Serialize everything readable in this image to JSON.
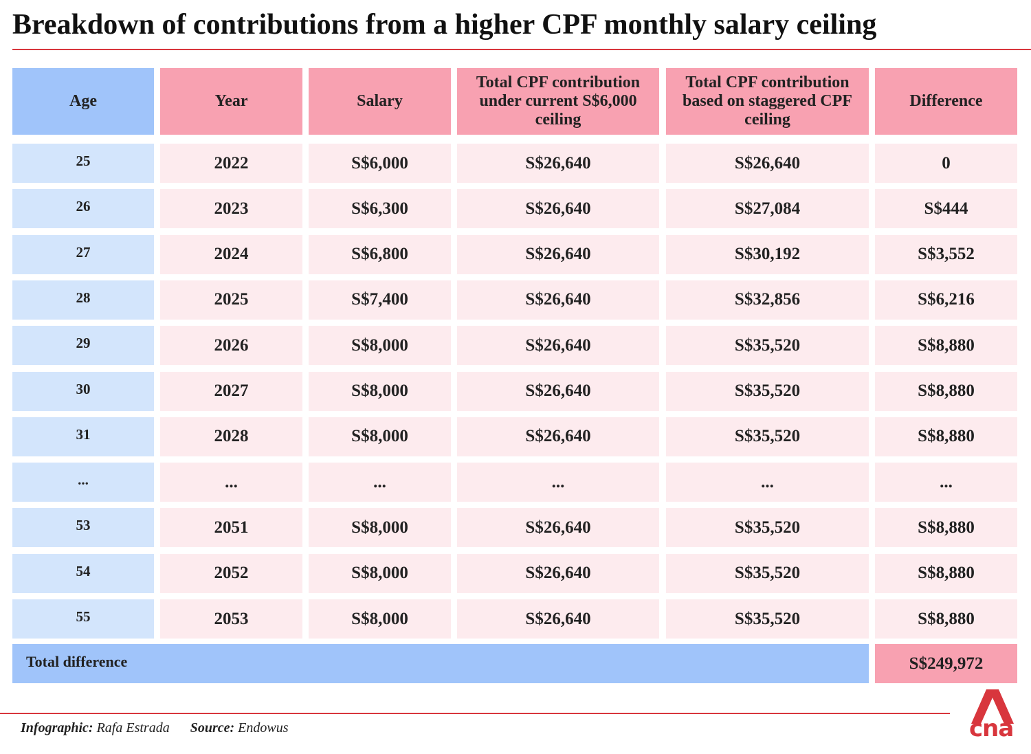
{
  "header": {
    "title": "Breakdown of contributions from a higher CPF monthly salary ceiling"
  },
  "table": {
    "columns": [
      "Age",
      "Year",
      "Salary",
      "Total CPF contribution under current S$6,000 ceiling",
      "Total CPF contribution based on staggered CPF ceiling",
      "Difference"
    ],
    "rows": [
      [
        "25",
        "2022",
        "S$6,000",
        "S$26,640",
        "S$26,640",
        "0"
      ],
      [
        "26",
        "2023",
        "S$6,300",
        "S$26,640",
        "S$27,084",
        "S$444"
      ],
      [
        "27",
        "2024",
        "S$6,800",
        "S$26,640",
        "S$30,192",
        "S$3,552"
      ],
      [
        "28",
        "2025",
        "S$7,400",
        "S$26,640",
        "S$32,856",
        "S$6,216"
      ],
      [
        "29",
        "2026",
        "S$8,000",
        "S$26,640",
        "S$35,520",
        "S$8,880"
      ],
      [
        "30",
        "2027",
        "S$8,000",
        "S$26,640",
        "S$35,520",
        "S$8,880"
      ],
      [
        "31",
        "2028",
        "S$8,000",
        "S$26,640",
        "S$35,520",
        "S$8,880"
      ],
      [
        "...",
        "...",
        "...",
        "...",
        "...",
        "..."
      ],
      [
        "53",
        "2051",
        "S$8,000",
        "S$26,640",
        "S$35,520",
        "S$8,880"
      ],
      [
        "54",
        "2052",
        "S$8,000",
        "S$26,640",
        "S$35,520",
        "S$8,880"
      ],
      [
        "55",
        "2053",
        "S$8,000",
        "S$26,640",
        "S$35,520",
        "S$8,880"
      ]
    ],
    "total": {
      "label": "Total difference",
      "value": "S$249,972"
    }
  },
  "footer": {
    "credit_label": "Infographic:",
    "credit": "Rafa Estrada",
    "source_label": "Source:",
    "source": "Endowus"
  },
  "logo": {
    "text": "cna"
  }
}
